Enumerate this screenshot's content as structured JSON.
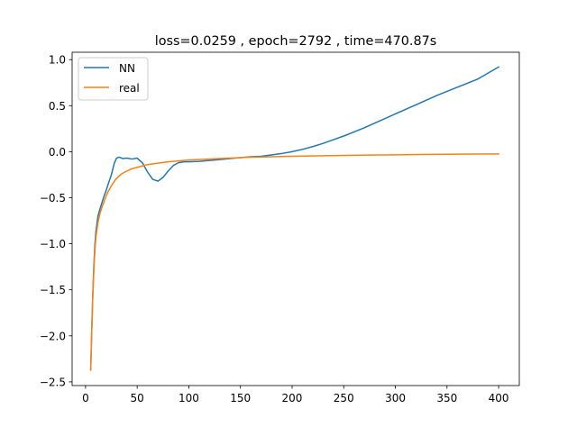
{
  "chart_data": {
    "type": "line",
    "title": "loss=0.0259 , epoch=2792 , time=470.87s",
    "xlabel": "",
    "ylabel": "",
    "xlim": [
      -13,
      420
    ],
    "ylim": [
      -2.54,
      1.08
    ],
    "xticks": [
      0,
      50,
      100,
      150,
      200,
      250,
      300,
      350,
      400
    ],
    "yticks": [
      -2.5,
      -2.0,
      -1.5,
      -1.0,
      -0.5,
      0.0,
      0.5,
      1.0
    ],
    "ytick_labels": [
      "−2.5",
      "−2.0",
      "−1.5",
      "−1.0",
      "−0.5",
      "0.0",
      "0.5",
      "1.0"
    ],
    "grid": false,
    "legend_position": "upper-left",
    "series": [
      {
        "name": "NN",
        "color": "#1f77b4",
        "x": [
          5,
          6,
          7,
          8,
          9,
          10,
          12,
          14,
          16,
          18,
          20,
          22,
          25,
          28,
          30,
          32,
          34,
          36,
          40,
          45,
          50,
          55,
          60,
          65,
          70,
          75,
          80,
          85,
          90,
          95,
          100,
          110,
          120,
          130,
          140,
          150,
          160,
          170,
          180,
          190,
          200,
          210,
          220,
          230,
          240,
          250,
          260,
          270,
          280,
          290,
          300,
          320,
          340,
          360,
          380,
          400
        ],
        "y": [
          -2.37,
          -1.95,
          -1.55,
          -1.25,
          -1.02,
          -0.87,
          -0.7,
          -0.62,
          -0.55,
          -0.48,
          -0.42,
          -0.35,
          -0.25,
          -0.12,
          -0.07,
          -0.06,
          -0.065,
          -0.075,
          -0.07,
          -0.08,
          -0.07,
          -0.12,
          -0.22,
          -0.3,
          -0.32,
          -0.28,
          -0.21,
          -0.15,
          -0.12,
          -0.11,
          -0.11,
          -0.105,
          -0.095,
          -0.085,
          -0.075,
          -0.065,
          -0.055,
          -0.05,
          -0.035,
          -0.02,
          0.0,
          0.025,
          0.055,
          0.09,
          0.13,
          0.17,
          0.215,
          0.26,
          0.31,
          0.36,
          0.41,
          0.51,
          0.61,
          0.7,
          0.79,
          0.92
        ]
      },
      {
        "name": "real",
        "color": "#ff7f0e",
        "x": [
          5,
          6,
          7,
          8,
          9,
          10,
          12,
          14,
          16,
          18,
          20,
          22,
          25,
          28,
          30,
          35,
          40,
          45,
          50,
          55,
          60,
          70,
          80,
          90,
          100,
          120,
          140,
          160,
          180,
          200,
          225,
          250,
          275,
          300,
          325,
          350,
          375,
          400
        ],
        "y": [
          -2.37,
          -1.95,
          -1.58,
          -1.3,
          -1.08,
          -0.93,
          -0.77,
          -0.67,
          -0.6,
          -0.54,
          -0.48,
          -0.43,
          -0.37,
          -0.32,
          -0.29,
          -0.24,
          -0.21,
          -0.185,
          -0.17,
          -0.155,
          -0.14,
          -0.125,
          -0.11,
          -0.1,
          -0.09,
          -0.08,
          -0.07,
          -0.06,
          -0.055,
          -0.05,
          -0.045,
          -0.04,
          -0.037,
          -0.034,
          -0.031,
          -0.028,
          -0.026,
          -0.024
        ]
      }
    ]
  }
}
